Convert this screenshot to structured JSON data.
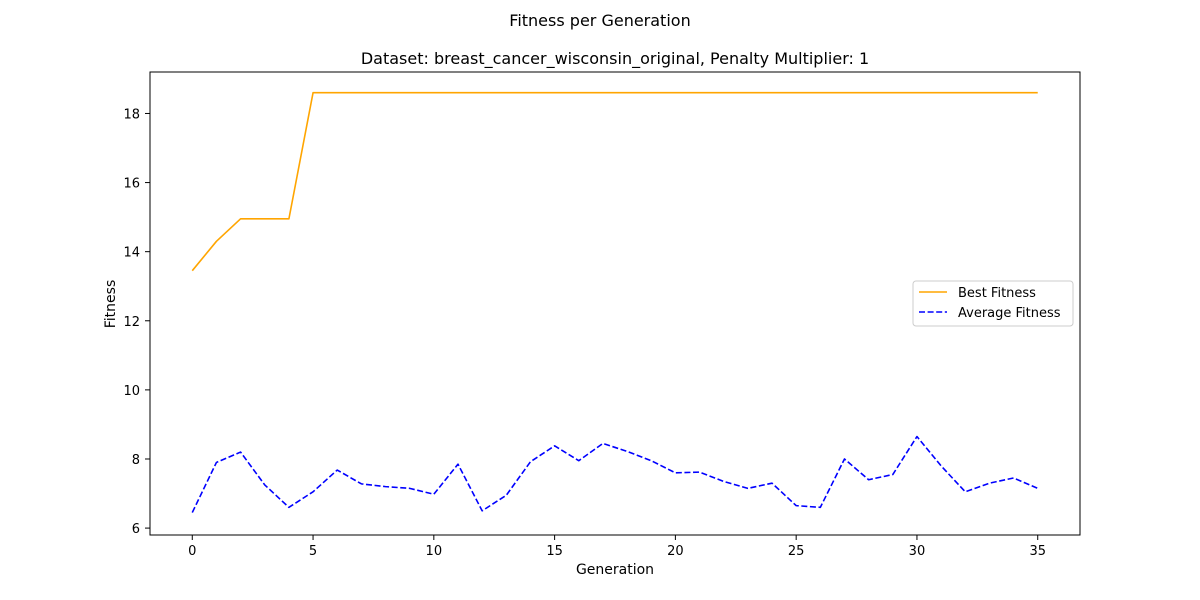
{
  "chart_data": {
    "type": "line",
    "suptitle": "Fitness per Generation",
    "title": "Dataset: breast_cancer_wisconsin_original, Penalty Multiplier: 1",
    "xlabel": "Generation",
    "ylabel": "Fitness",
    "xlim": [
      -1.75,
      36.75
    ],
    "ylim": [
      5.8,
      19.2
    ],
    "xticks": [
      0,
      5,
      10,
      15,
      20,
      25,
      30,
      35
    ],
    "yticks": [
      6,
      8,
      10,
      12,
      14,
      16,
      18
    ],
    "grid": false,
    "legend_position": "center-right",
    "x": [
      0,
      1,
      2,
      3,
      4,
      5,
      6,
      7,
      8,
      9,
      10,
      11,
      12,
      13,
      14,
      15,
      16,
      17,
      18,
      19,
      20,
      21,
      22,
      23,
      24,
      25,
      26,
      27,
      28,
      29,
      30,
      31,
      32,
      33,
      34,
      35
    ],
    "series": [
      {
        "name": "Best Fitness",
        "color": "#ffa500",
        "style": "solid",
        "values": [
          13.45,
          14.3,
          14.95,
          14.95,
          14.95,
          18.6,
          18.6,
          18.6,
          18.6,
          18.6,
          18.6,
          18.6,
          18.6,
          18.6,
          18.6,
          18.6,
          18.6,
          18.6,
          18.6,
          18.6,
          18.6,
          18.6,
          18.6,
          18.6,
          18.6,
          18.6,
          18.6,
          18.6,
          18.6,
          18.6,
          18.6,
          18.6,
          18.6,
          18.6,
          18.6,
          18.6
        ]
      },
      {
        "name": "Average Fitness",
        "color": "#0000ff",
        "style": "dashed",
        "values": [
          6.45,
          7.9,
          8.2,
          7.25,
          6.6,
          7.05,
          7.68,
          7.28,
          7.2,
          7.15,
          6.98,
          7.85,
          6.5,
          6.95,
          7.92,
          8.38,
          7.95,
          8.45,
          8.22,
          7.95,
          7.6,
          7.62,
          7.35,
          7.15,
          7.3,
          6.65,
          6.6,
          8.0,
          7.4,
          7.55,
          8.65,
          7.8,
          7.05,
          7.3,
          7.45,
          7.15
        ]
      }
    ]
  }
}
